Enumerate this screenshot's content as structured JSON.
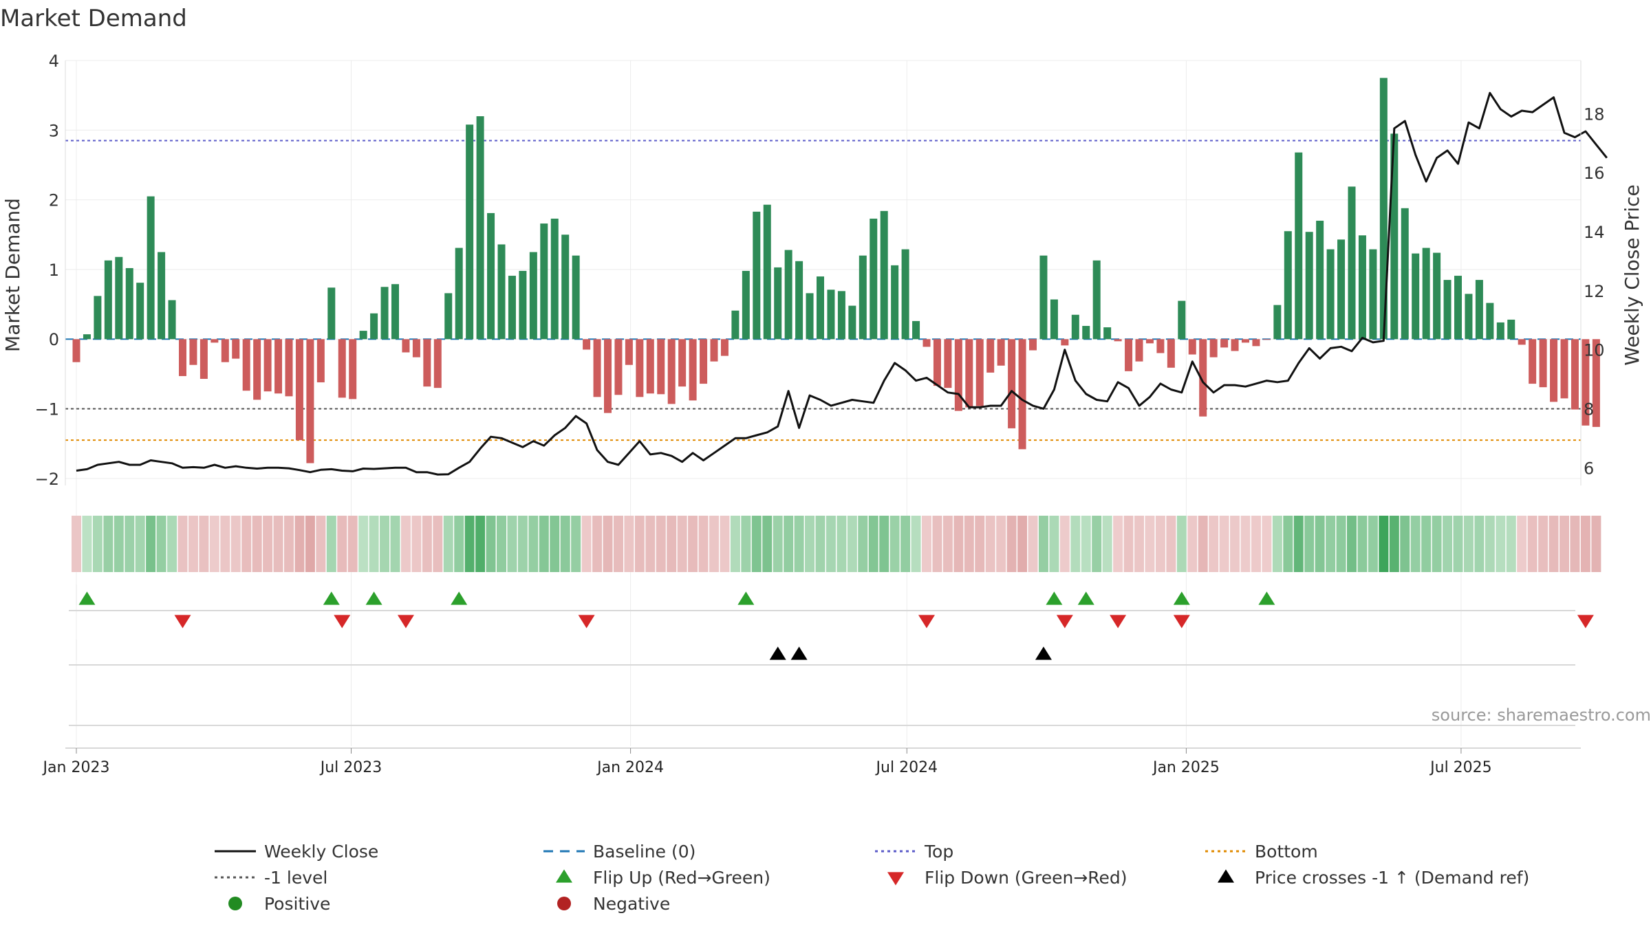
{
  "chart_data": {
    "type": "bar",
    "title": "Market Demand",
    "ylabel": "Market Demand",
    "y2label": "Weekly Close Price",
    "ylim": [
      -2.1,
      4.0
    ],
    "y2lim": [
      5.4,
      19.8
    ],
    "yticks": [
      -2,
      -1,
      0,
      1,
      2,
      3,
      4
    ],
    "y2ticks": [
      6,
      8,
      10,
      12,
      14,
      16,
      18
    ],
    "reference_lines": {
      "baseline": 0,
      "top": 2.85,
      "minus_one": -1,
      "bottom": -1.45
    },
    "x_start": "2023-01-01",
    "week_days": 7,
    "xticks": [
      {
        "date": "2023-01-01",
        "label": "Jan 2023"
      },
      {
        "date": "2023-07-01",
        "label": "Jul 2023"
      },
      {
        "date": "2024-01-01",
        "label": "Jan 2024"
      },
      {
        "date": "2024-07-01",
        "label": "Jul 2024"
      },
      {
        "date": "2025-01-01",
        "label": "Jan 2025"
      },
      {
        "date": "2025-07-01",
        "label": "Jul 2025"
      }
    ],
    "demand": [
      -0.33,
      0.07,
      0.62,
      1.13,
      1.18,
      1.02,
      0.81,
      2.05,
      1.25,
      0.56,
      -0.53,
      -0.37,
      -0.57,
      -0.05,
      -0.33,
      -0.28,
      -0.74,
      -0.87,
      -0.75,
      -0.78,
      -0.82,
      -1.45,
      -1.78,
      -0.62,
      0.74,
      -0.84,
      -0.86,
      0.12,
      0.37,
      0.75,
      0.79,
      -0.19,
      -0.26,
      -0.68,
      -0.7,
      0.66,
      1.31,
      3.08,
      3.2,
      1.81,
      1.36,
      0.91,
      0.98,
      1.25,
      1.66,
      1.73,
      1.5,
      1.2,
      -0.15,
      -0.83,
      -1.06,
      -0.8,
      -0.37,
      -0.83,
      -0.78,
      -0.79,
      -0.93,
      -0.68,
      -0.88,
      -0.64,
      -0.32,
      -0.24,
      0.41,
      0.98,
      1.83,
      1.93,
      1.03,
      1.28,
      1.12,
      0.66,
      0.9,
      0.71,
      0.69,
      0.48,
      1.2,
      1.73,
      1.84,
      1.06,
      1.29,
      0.26,
      -0.11,
      -0.67,
      -0.7,
      -1.03,
      -0.98,
      -0.96,
      -0.48,
      -0.38,
      -1.28,
      -1.58,
      -0.16,
      1.2,
      0.57,
      -0.09,
      0.35,
      0.19,
      1.13,
      0.17,
      -0.03,
      -0.46,
      -0.32,
      -0.06,
      -0.2,
      -0.41,
      0.55,
      -0.22,
      -1.11,
      -0.26,
      -0.12,
      -0.17,
      -0.05,
      -0.1,
      -0.01,
      0.49,
      1.55,
      2.68,
      1.54,
      1.7,
      1.29,
      1.43,
      2.19,
      1.49,
      1.29,
      3.75,
      2.95,
      1.88,
      1.23,
      1.31,
      1.24,
      0.85,
      0.91,
      0.65,
      0.85,
      0.52,
      0.24,
      0.28,
      -0.08,
      -0.64,
      -0.69,
      -0.9,
      -0.85,
      -1.01,
      -1.24,
      -1.26
    ],
    "weekly_close": [
      5.9,
      5.95,
      6.1,
      6.15,
      6.2,
      6.1,
      6.1,
      6.25,
      6.2,
      6.15,
      6.0,
      6.02,
      6.0,
      6.1,
      6.0,
      6.05,
      6.0,
      5.97,
      6.0,
      6.0,
      5.98,
      5.92,
      5.85,
      5.93,
      5.95,
      5.9,
      5.88,
      5.97,
      5.96,
      5.98,
      6.0,
      6.0,
      5.85,
      5.85,
      5.77,
      5.78,
      6.0,
      6.2,
      6.65,
      7.05,
      7.0,
      6.85,
      6.7,
      6.9,
      6.75,
      7.1,
      7.35,
      7.75,
      7.5,
      6.6,
      6.2,
      6.1,
      6.5,
      6.9,
      6.45,
      6.5,
      6.4,
      6.2,
      6.5,
      6.25,
      6.5,
      6.75,
      7.0,
      7.0,
      7.1,
      7.2,
      7.4,
      8.6,
      7.35,
      8.45,
      8.3,
      8.1,
      8.2,
      8.3,
      8.25,
      8.2,
      8.95,
      9.55,
      9.3,
      8.95,
      9.05,
      8.8,
      8.55,
      8.5,
      8.05,
      8.05,
      8.1,
      8.1,
      8.6,
      8.3,
      8.1,
      8.0,
      8.65,
      10.0,
      8.95,
      8.5,
      8.3,
      8.25,
      8.9,
      8.7,
      8.1,
      8.4,
      8.85,
      8.65,
      8.55,
      9.6,
      8.9,
      8.55,
      8.8,
      8.8,
      8.75,
      8.85,
      8.95,
      8.9,
      8.95,
      9.55,
      10.05,
      9.7,
      10.05,
      10.1,
      9.95,
      10.4,
      10.25,
      10.3,
      17.5,
      17.75,
      16.6,
      15.7,
      16.5,
      16.75,
      16.3,
      17.7,
      17.5,
      18.7,
      18.15,
      17.9,
      18.1,
      18.05,
      18.3,
      18.55,
      17.35,
      17.2,
      17.4,
      16.95,
      16.5
    ],
    "flip_up_weeks": [
      1,
      24,
      28,
      36,
      63,
      92,
      95,
      104,
      112
    ],
    "flip_down_weeks": [
      10,
      25,
      31,
      48,
      80,
      93,
      98,
      104,
      142
    ],
    "price_cross_weeks": [
      66,
      68,
      91
    ],
    "legend": [
      {
        "label": "Weekly Close",
        "symbol": "line",
        "color": "#111111"
      },
      {
        "label": "Baseline (0)",
        "symbol": "dash",
        "color": "#1f77b4"
      },
      {
        "label": "Top",
        "symbol": "dot",
        "color": "#5b5bc8"
      },
      {
        "label": "Bottom",
        "symbol": "dot",
        "color": "#e08a00"
      },
      {
        "label": "-1 level",
        "symbol": "dot",
        "color": "#555555"
      },
      {
        "label": "Flip Up (Red→Green)",
        "symbol": "tri-up",
        "color": "#2ca02c"
      },
      {
        "label": "Flip Down (Green→Red)",
        "symbol": "tri-down",
        "color": "#d62728"
      },
      {
        "label": "Price crosses -1 ↑ (Demand ref)",
        "symbol": "tri-up",
        "color": "#000000"
      },
      {
        "label": "Positive",
        "symbol": "circle",
        "color": "#228b22"
      },
      {
        "label": "Negative",
        "symbol": "circle",
        "color": "#b22222"
      }
    ],
    "colors": {
      "positive": "#2e8b57",
      "negative": "#cd5c5c",
      "price": "#111111",
      "baseline": "#1f77b4",
      "top": "#5b5bc8",
      "bottom": "#e08a00",
      "minus_one": "#555555",
      "flip_up": "#2ca02c",
      "flip_down": "#d62728",
      "cross": "#000000"
    }
  },
  "source_text": "source: sharemaestro.com"
}
